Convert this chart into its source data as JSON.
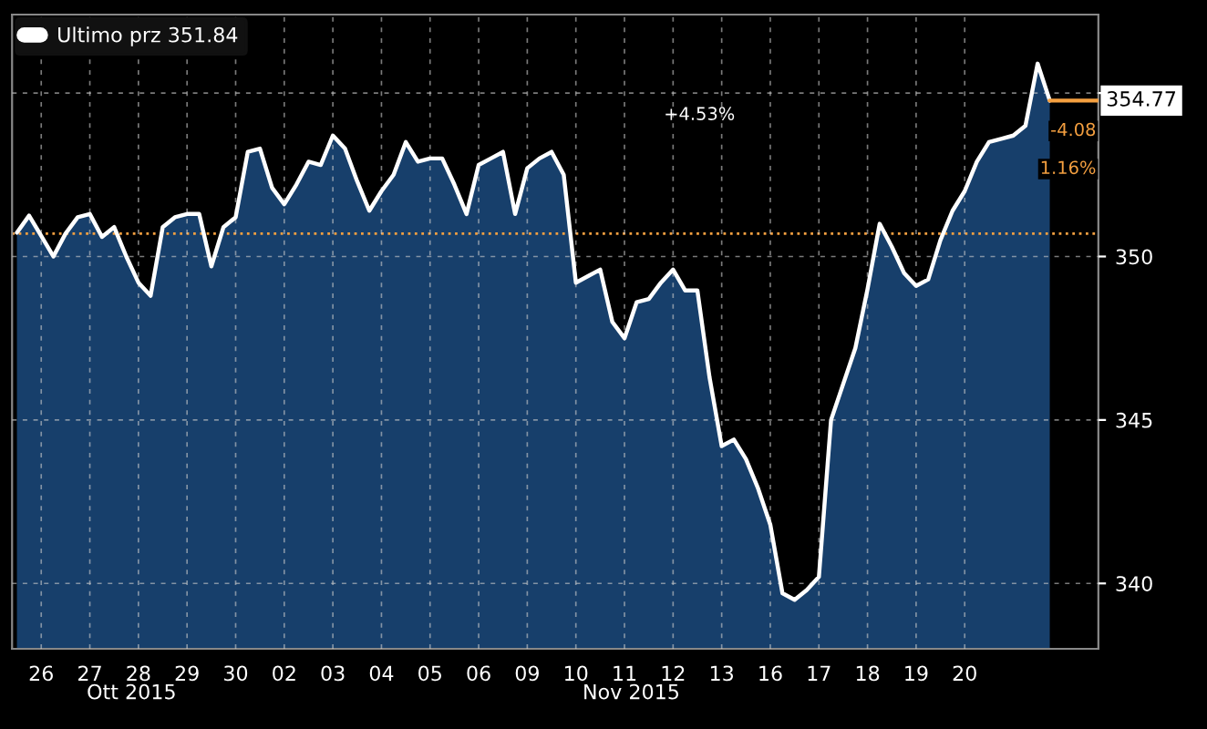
{
  "chart_data": {
    "type": "area",
    "categories": [
      null,
      null,
      "26",
      null,
      null,
      null,
      "27",
      null,
      null,
      null,
      "28",
      null,
      null,
      null,
      "29",
      null,
      null,
      null,
      "30",
      null,
      null,
      null,
      "02",
      null,
      null,
      null,
      "03",
      null,
      null,
      null,
      "04",
      null,
      null,
      null,
      "05",
      null,
      null,
      null,
      "06",
      null,
      null,
      null,
      "09",
      null,
      null,
      null,
      "10",
      null,
      null,
      null,
      "11",
      null,
      null,
      null,
      "12",
      null,
      null,
      null,
      "13",
      null,
      null,
      null,
      "16",
      null,
      null,
      null,
      "17",
      null,
      null,
      null,
      "18",
      null,
      null,
      null,
      "19",
      null,
      null,
      null,
      "20",
      null,
      null,
      null,
      null,
      null,
      null,
      null
    ],
    "series": [
      {
        "name": "Ultimo prz 351.84",
        "color": "#ffffff",
        "values": [
          350.73,
          351.25,
          350.63,
          350.0,
          350.7,
          351.2,
          351.3,
          350.6,
          350.9,
          350.0,
          349.2,
          348.8,
          350.9,
          351.2,
          351.3,
          351.3,
          349.7,
          350.9,
          351.2,
          353.2,
          353.3,
          352.1,
          351.6,
          352.2,
          352.9,
          352.8,
          353.7,
          353.3,
          352.3,
          351.4,
          352.0,
          352.5,
          353.5,
          352.9,
          353.0,
          353.0,
          352.2,
          351.3,
          352.8,
          353.0,
          353.2,
          351.3,
          352.7,
          353.0,
          353.2,
          352.5,
          349.2,
          349.4,
          349.6,
          348.0,
          347.5,
          348.6,
          348.7,
          349.2,
          349.6,
          348.96,
          348.96,
          346.3,
          344.2,
          344.4,
          343.8,
          342.9,
          341.8,
          339.7,
          339.5,
          339.8,
          340.2,
          345.0,
          346.1,
          347.2,
          349.0,
          351.0,
          350.3,
          349.5,
          349.1,
          349.3,
          350.5,
          351.4,
          352.0,
          352.9,
          353.5,
          353.6,
          353.7,
          354.0,
          355.9,
          354.77
        ]
      }
    ],
    "ylim": [
      338,
      357.4
    ],
    "yticks": [
      340,
      345,
      350,
      {
        "value": 355,
        "label": null
      }
    ],
    "ref_lines": [
      {
        "axis": "y",
        "value": 350.7,
        "color": "#f5a040",
        "line_style": "dotted"
      },
      {
        "axis": "y",
        "value": 354.77,
        "label": "354.77",
        "color": "#f5a040",
        "line_style": "solid"
      }
    ],
    "annotations": [
      "+4.53%",
      "-4.08",
      "1.16%",
      "Ott 2015",
      "Nov 2015"
    ],
    "grid": true,
    "legend": "top left"
  }
}
